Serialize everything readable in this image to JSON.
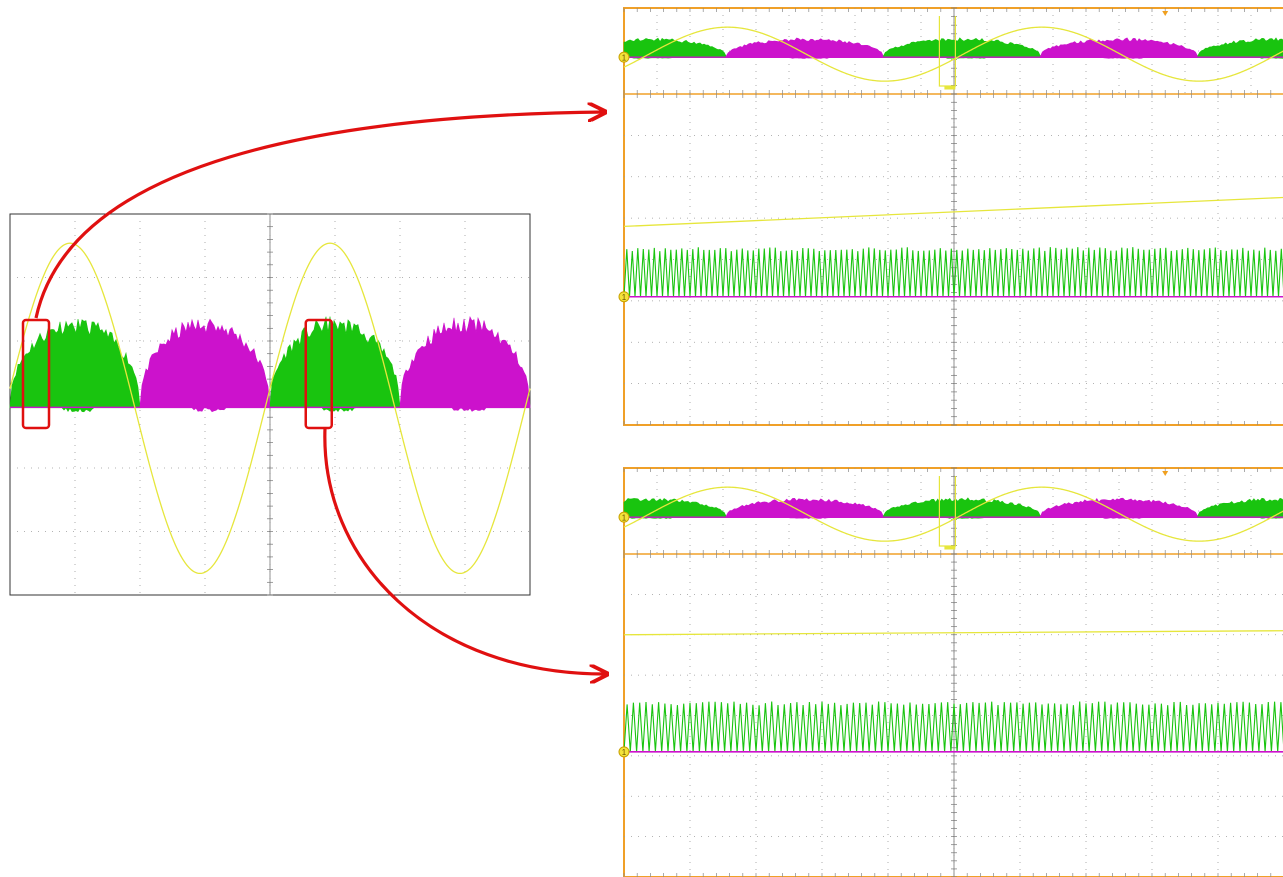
{
  "colors": {
    "yellow": "#e6e63c",
    "green": "#19c40f",
    "magenta": "#cc12cc",
    "arrow": "#e01010",
    "scope_border": "#f0a028",
    "grid": "#9a9a9a",
    "overview_border": "#333333",
    "marker_fill": "#f3e33a",
    "marker_stroke": "#c9a100"
  },
  "markers": {
    "ground_label": "1"
  },
  "chart_data": [
    {
      "type": "line",
      "series": [
        {
          "color": "yellow",
          "kind": "sine",
          "cycles": 2,
          "start_phase": "rising",
          "amplitude_div": 2.5
        },
        {
          "color": "green",
          "kind": "switching-envelope",
          "active": "positive-half-cycles",
          "peak_div": 0.6
        },
        {
          "color": "magenta",
          "kind": "switching-envelope",
          "active": "negative-half-cycles",
          "peak_div": 0.6
        }
      ],
      "grid_divisions": [
        8,
        6
      ],
      "highlights": [
        {
          "start_div": 0.2,
          "end_div": 0.6,
          "target": "zoom-1"
        },
        {
          "start_div": 4.55,
          "end_div": 4.95,
          "target": "zoom-2"
        }
      ]
    },
    {
      "type": "line",
      "zoom_source": 1,
      "overview": {
        "grid_divisions": [
          10,
          2
        ],
        "cycles": 2.1,
        "trigger_marker": true
      },
      "detail": {
        "grid_divisions": [
          10,
          8
        ],
        "series": [
          {
            "color": "yellow",
            "kind": "ramp",
            "level_start_div": 2.7,
            "level_end_div": 3.4
          },
          {
            "color": "green",
            "kind": "triangle",
            "periods": 120,
            "amplitude_div": 1.15
          },
          {
            "color": "magenta",
            "kind": "flat"
          }
        ]
      }
    },
    {
      "type": "line",
      "zoom_source": 2,
      "overview": {
        "grid_divisions": [
          10,
          2
        ],
        "cycles": 2.1,
        "trigger_marker": true
      },
      "detail": {
        "grid_divisions": [
          10,
          8
        ],
        "series": [
          {
            "color": "yellow",
            "kind": "ramp",
            "level_start_div": 3.9,
            "level_end_div": 4.0
          },
          {
            "color": "green",
            "kind": "triangle",
            "periods": 105,
            "amplitude_div": 1.2
          },
          {
            "color": "magenta",
            "kind": "flat"
          }
        ]
      }
    }
  ]
}
